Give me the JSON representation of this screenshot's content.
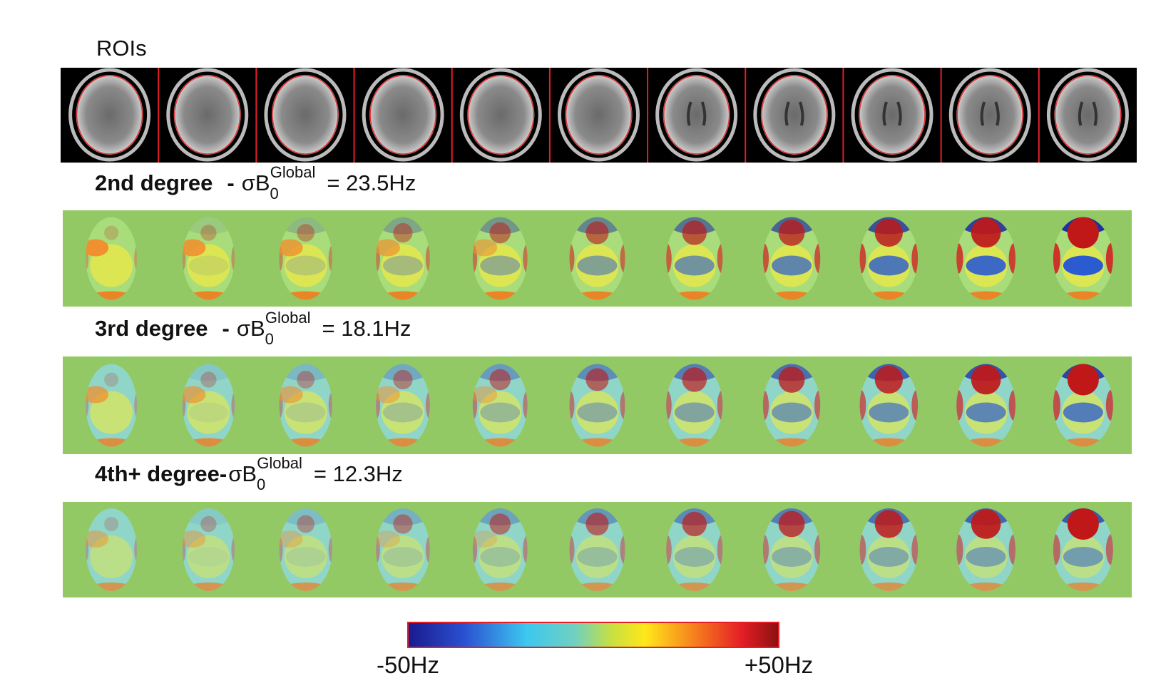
{
  "rois_title": "ROIs",
  "rows": [
    {
      "degree": "2nd degree",
      "dash": "-",
      "sigma": "σB",
      "sub": "0",
      "sup": "Global",
      "equals": "= 23.5Hz"
    },
    {
      "degree": "3rd degree",
      "dash": "-",
      "sigma": "σB",
      "sub": "0",
      "sup": "Global",
      "equals": "= 18.1Hz"
    },
    {
      "degree": "4th+ degree",
      "dash": "-",
      "sigma": "σB",
      "sub": "0",
      "sup": "Global",
      "equals": "= 12.3Hz"
    }
  ],
  "colorbar": {
    "min_label": "-50Hz",
    "max_label": "+50Hz"
  }
}
